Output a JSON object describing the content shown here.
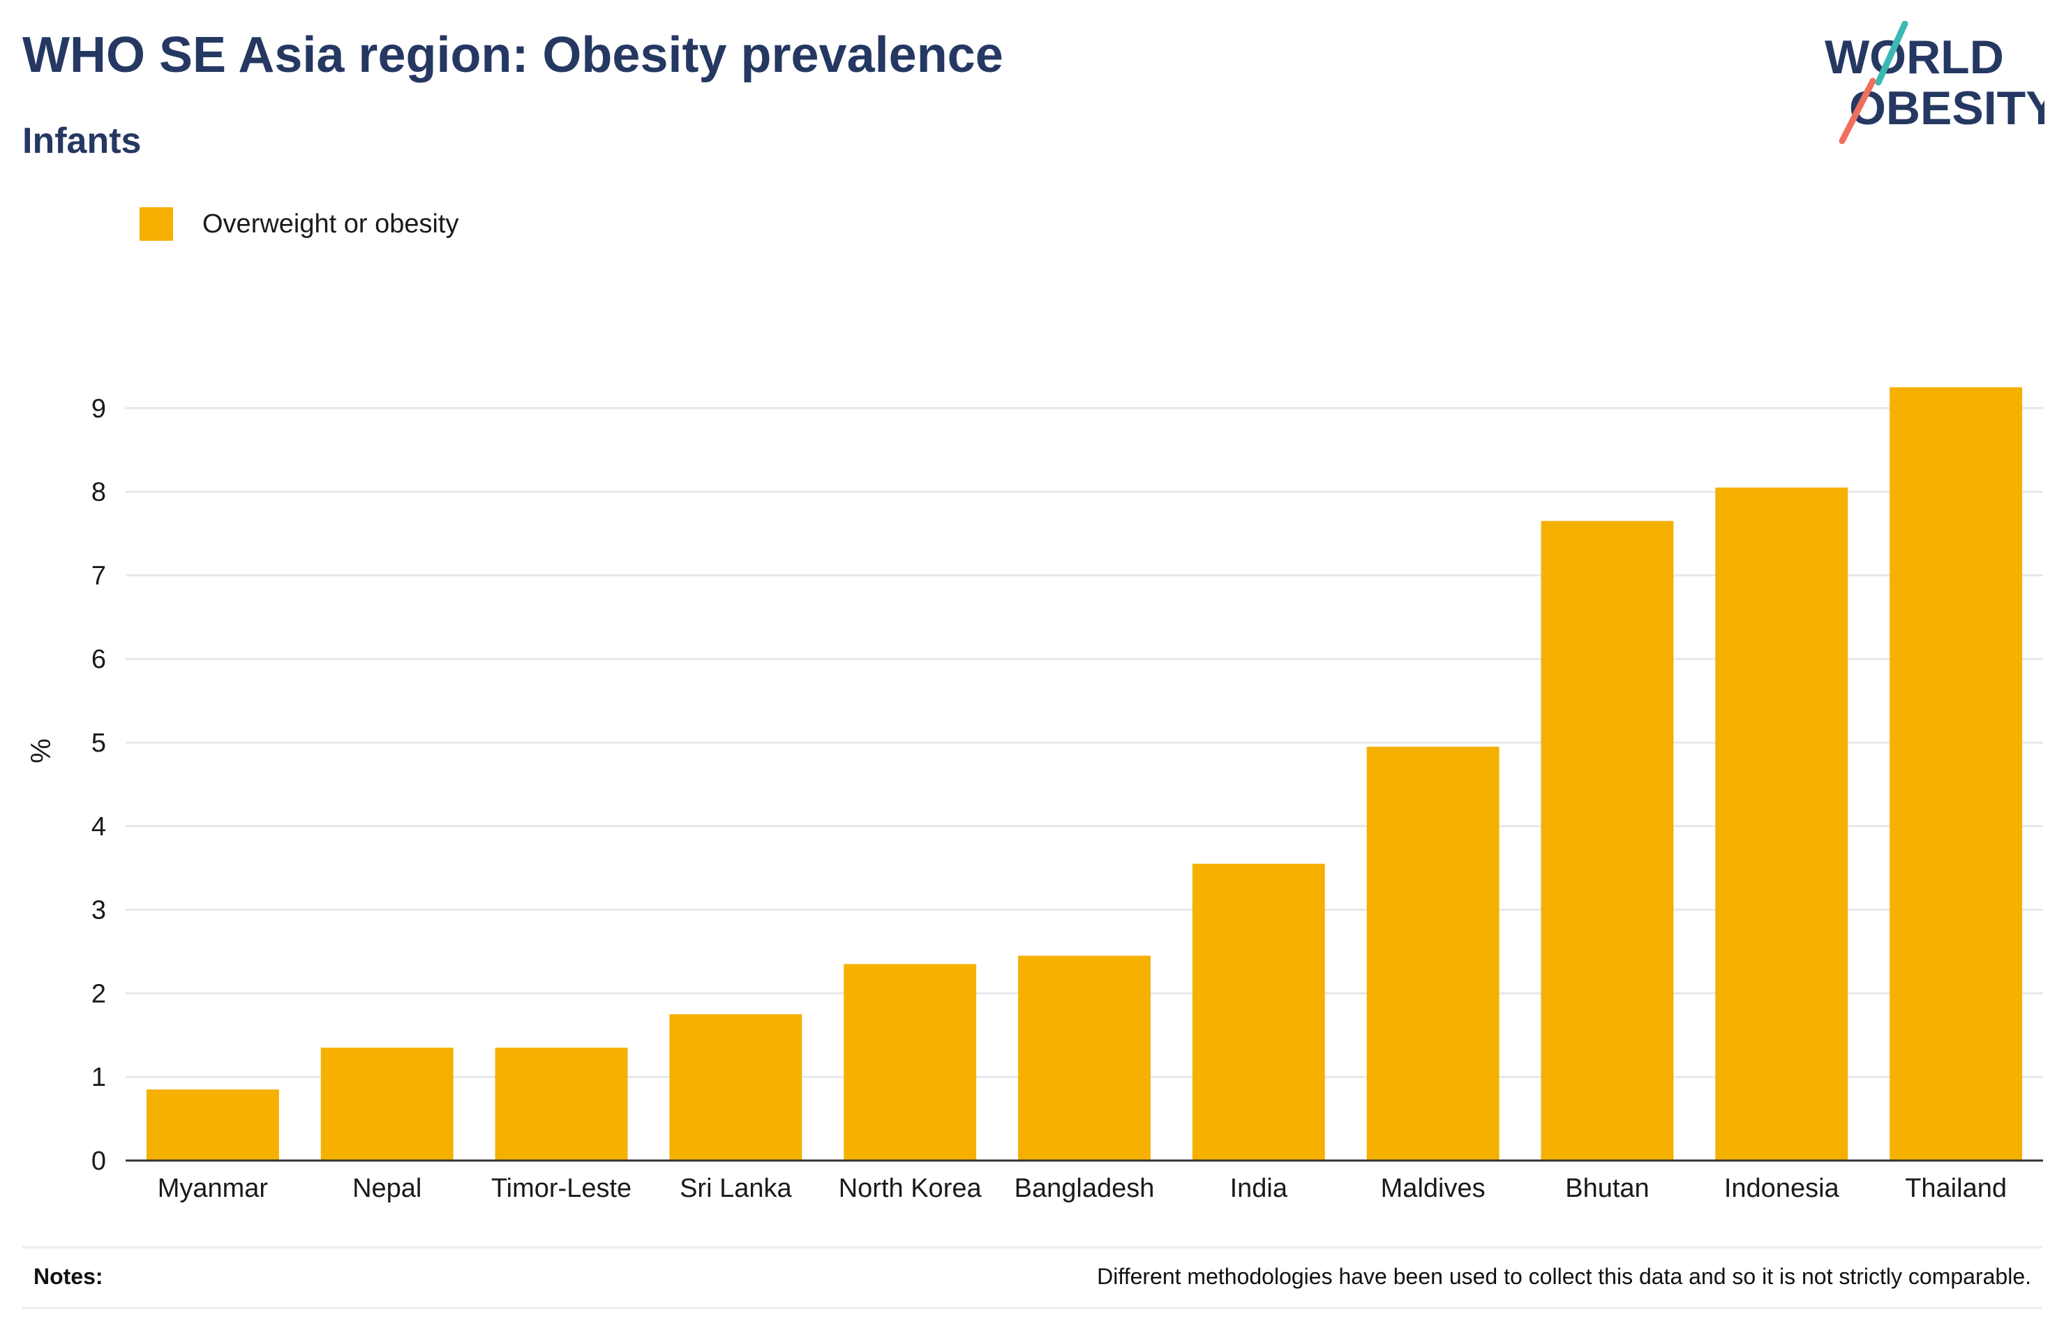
{
  "header": {
    "title": "WHO SE Asia region: Obesity prevalence",
    "subtitle": "Infants"
  },
  "logo": {
    "line1": "WORLD",
    "line2": "OBESITY"
  },
  "notes": {
    "label": "Notes:",
    "text": "Different methodologies have been used to collect this data and so it is not strictly comparable."
  },
  "colors": {
    "bar": "#f5b000",
    "title": "#253862",
    "grid": "#e6e8ee",
    "axis": "#333333",
    "logo_teal": "#3bb8b2",
    "logo_coral": "#ef6f5e"
  },
  "chart_data": {
    "type": "bar",
    "title": "WHO SE Asia region: Obesity prevalence",
    "subtitle": "Infants",
    "xlabel": "",
    "ylabel": "%",
    "categories": [
      "Myanmar",
      "Nepal",
      "Timor-Leste",
      "Sri Lanka",
      "North Korea",
      "Bangladesh",
      "India",
      "Maldives",
      "Bhutan",
      "Indonesia",
      "Thailand"
    ],
    "series": [
      {
        "name": "Overweight or obesity",
        "values": [
          0.85,
          1.35,
          1.35,
          1.75,
          2.35,
          2.45,
          3.55,
          4.95,
          7.65,
          8.05,
          9.25
        ]
      }
    ],
    "ylim": [
      0,
      9.5
    ],
    "yticks": [
      "0",
      "1",
      "2",
      "3",
      "4",
      "5",
      "6",
      "7",
      "8",
      "9"
    ],
    "grid": true,
    "legend_position": "top-left"
  }
}
